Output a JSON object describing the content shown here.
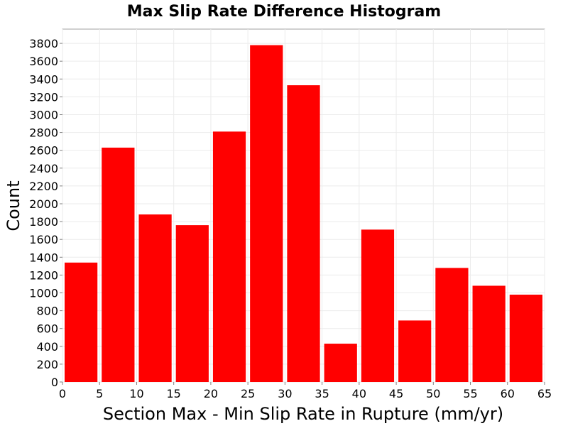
{
  "chart_data": {
    "type": "bar",
    "title": "Max Slip Rate Difference Histogram",
    "xlabel": "Section Max - Min Slip Rate in Rupture (mm/yr)",
    "ylabel": "Count",
    "bin_width": 5,
    "bins": [
      {
        "x0": 0,
        "x1": 5,
        "value": 1340
      },
      {
        "x0": 5,
        "x1": 10,
        "value": 2630
      },
      {
        "x0": 10,
        "x1": 15,
        "value": 1880
      },
      {
        "x0": 15,
        "x1": 20,
        "value": 1760
      },
      {
        "x0": 20,
        "x1": 25,
        "value": 2810
      },
      {
        "x0": 25,
        "x1": 30,
        "value": 3780
      },
      {
        "x0": 30,
        "x1": 35,
        "value": 3330
      },
      {
        "x0": 35,
        "x1": 40,
        "value": 430
      },
      {
        "x0": 40,
        "x1": 45,
        "value": 1710
      },
      {
        "x0": 45,
        "x1": 50,
        "value": 690
      },
      {
        "x0": 50,
        "x1": 55,
        "value": 1280
      },
      {
        "x0": 55,
        "x1": 60,
        "value": 1080
      },
      {
        "x0": 60,
        "x1": 65,
        "value": 980
      }
    ],
    "xlim": [
      0,
      65
    ],
    "ylim": [
      0,
      3960
    ],
    "xticks": [
      0,
      5,
      10,
      15,
      20,
      25,
      30,
      35,
      40,
      45,
      50,
      55,
      60,
      65
    ],
    "yticks": [
      0,
      200,
      400,
      600,
      800,
      1000,
      1200,
      1400,
      1600,
      1800,
      2000,
      2200,
      2400,
      2600,
      2800,
      3000,
      3200,
      3400,
      3600,
      3800
    ],
    "grid": true,
    "bar_color": "#ff0000",
    "legend": "none"
  }
}
